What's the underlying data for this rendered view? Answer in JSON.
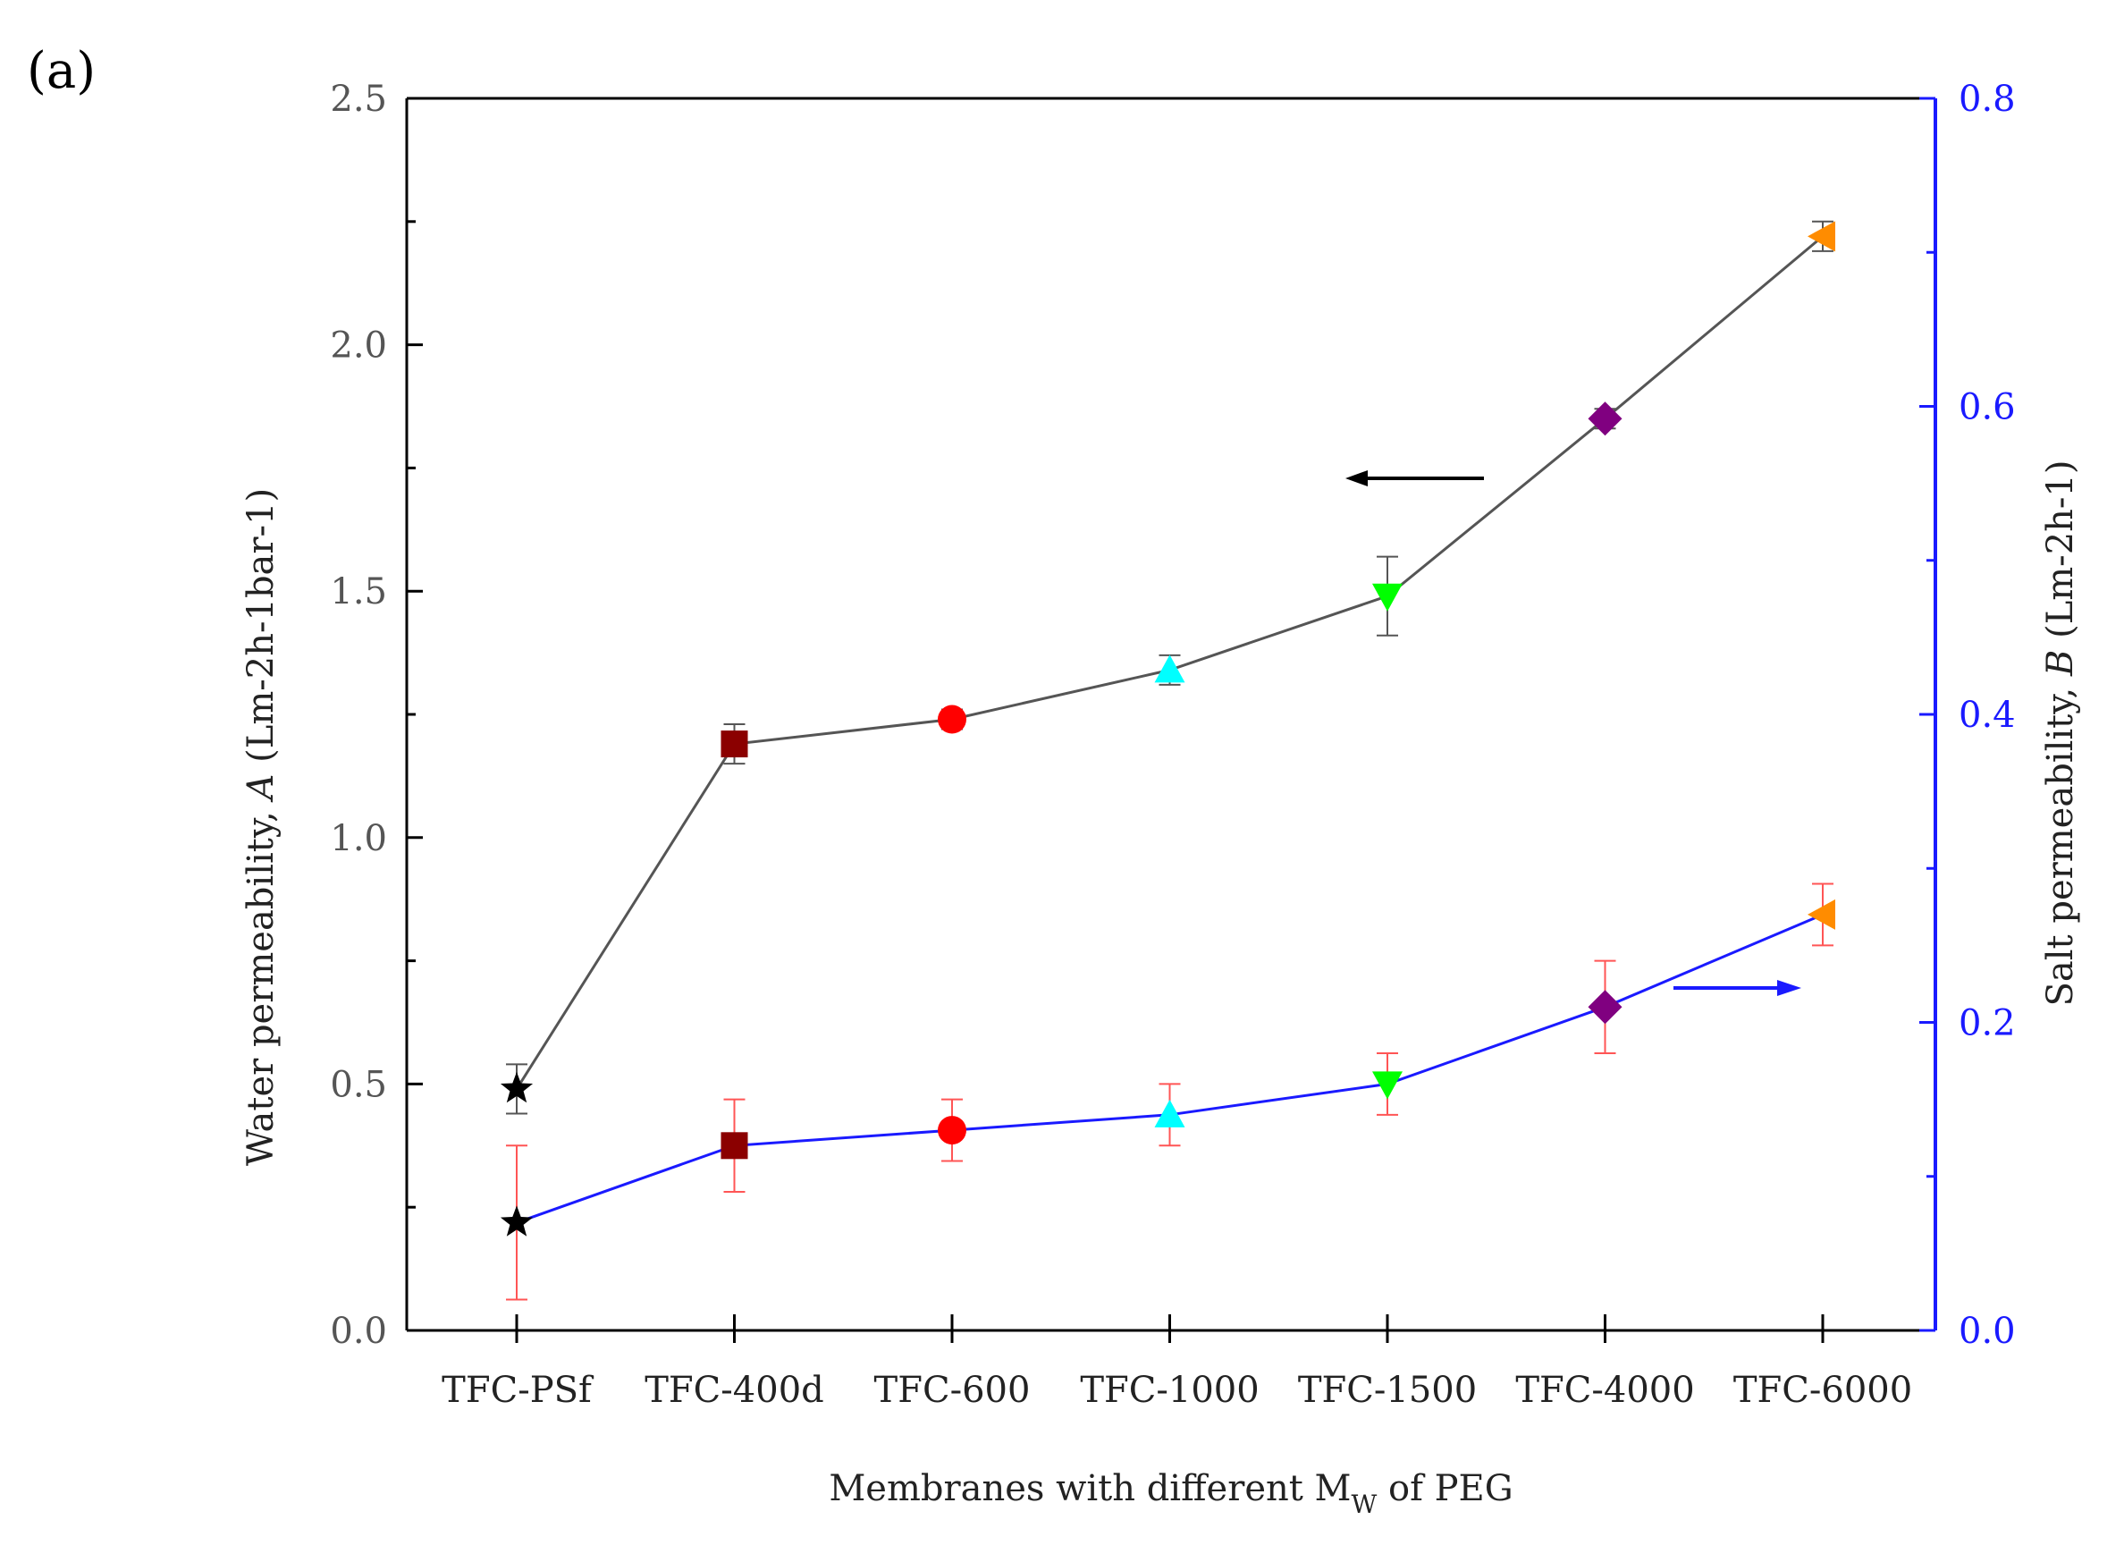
{
  "panel_label": "(a)",
  "chart_data": {
    "type": "line",
    "categories": [
      "TFC-PSf",
      "TFC-400d",
      "TFC-600",
      "TFC-1000",
      "TFC-1500",
      "TFC-4000",
      "TFC-6000"
    ],
    "xlabel_main": "Membranes with different M",
    "xlabel_sub": "W",
    "xlabel_tail": " of PEG",
    "left_axis": {
      "label_pre": "Water permeability, ",
      "label_symbol": "A",
      "label_post": " (Lm-2h-1bar-1)",
      "ylim": [
        0.0,
        2.5
      ],
      "ticks": [
        "0.0",
        "0.5",
        "1.0",
        "1.5",
        "2.0",
        "2.5"
      ],
      "color": "#000000"
    },
    "right_axis": {
      "label_pre": "Salt permeability, ",
      "label_symbol": "B",
      "label_post": " (Lm-2h-1)",
      "ylim": [
        0.0,
        0.8
      ],
      "ticks": [
        "0.0",
        "0.2",
        "0.4",
        "0.6",
        "0.8"
      ],
      "color": "#1a1aff"
    },
    "series": [
      {
        "name": "Water permeability A",
        "axis": "left",
        "line_color": "#555555",
        "values": [
          0.49,
          1.19,
          1.24,
          1.34,
          1.49,
          1.85,
          2.22
        ],
        "errors": [
          0.05,
          0.04,
          0.02,
          0.03,
          0.08,
          0.02,
          0.03
        ],
        "error_color": "#555555"
      },
      {
        "name": "Salt permeability B",
        "axis": "right",
        "line_color": "#1a1aff",
        "values": [
          0.07,
          0.12,
          0.13,
          0.14,
          0.16,
          0.21,
          0.27
        ],
        "errors": [
          0.05,
          0.03,
          0.02,
          0.02,
          0.02,
          0.03,
          0.02
        ],
        "error_color": "#ff5555"
      }
    ],
    "markers": [
      {
        "shape": "star",
        "color": "#000000"
      },
      {
        "shape": "square",
        "color": "#8b0000"
      },
      {
        "shape": "circle",
        "color": "#ff0000"
      },
      {
        "shape": "triangle-up",
        "color": "#00ffff"
      },
      {
        "shape": "triangle-down",
        "color": "#00ff00"
      },
      {
        "shape": "diamond",
        "color": "#800080"
      },
      {
        "shape": "triangle-left",
        "color": "#ff8c00"
      }
    ],
    "annotations": [
      {
        "type": "arrow",
        "direction": "left",
        "target_axis": "left",
        "color": "#000000"
      },
      {
        "type": "arrow",
        "direction": "right",
        "target_axis": "right",
        "color": "#1a1aff"
      }
    ]
  }
}
